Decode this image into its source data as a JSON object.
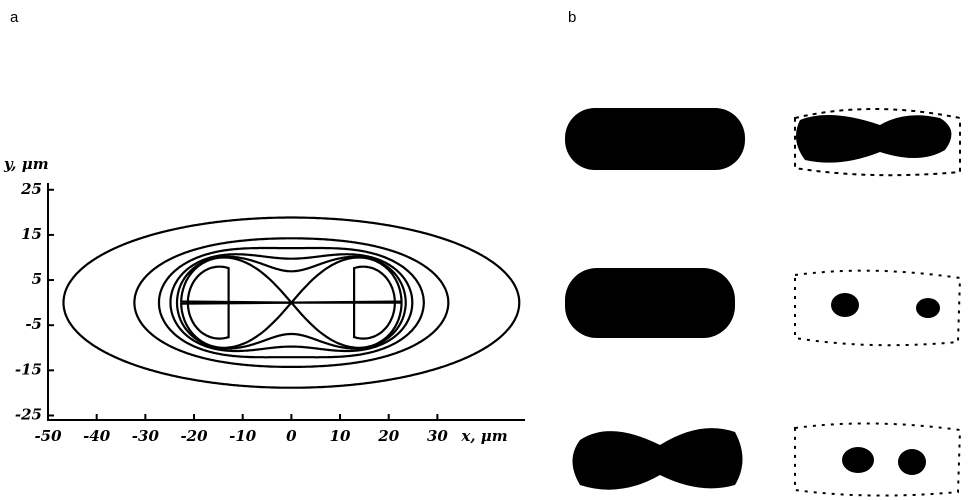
{
  "panels": {
    "a": "a",
    "b": "b"
  },
  "chart_data": {
    "type": "contour",
    "xlabel": "x, μm",
    "ylabel": "y, μm",
    "xlim": [
      -50,
      48
    ],
    "ylim": [
      -26,
      26.5
    ],
    "xticks": [
      -50,
      -40,
      -30,
      -20,
      -10,
      0,
      10,
      20,
      30
    ],
    "yticks": [
      -25,
      -15,
      -5,
      5,
      15,
      25
    ]
  }
}
